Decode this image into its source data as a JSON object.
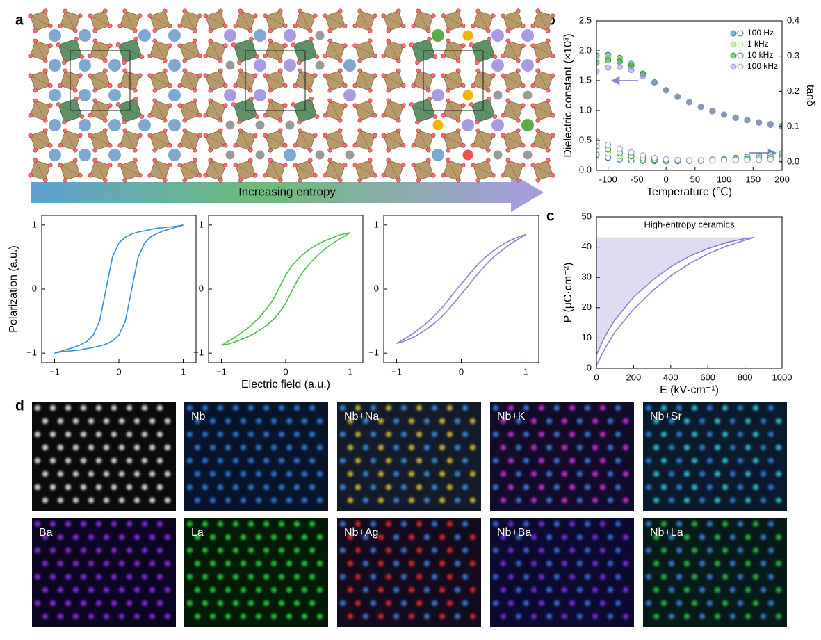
{
  "panel_labels": [
    "a",
    "b",
    "c",
    "d"
  ],
  "arrow_label": "Increasing entropy",
  "eds_maps": {
    "labels": [
      "Nb",
      "Nb+Na",
      "Nb+K",
      "Nb+Sr",
      "Ba",
      "La",
      "Nb+Ag",
      "Nb+Ba",
      "Nb+La"
    ]
  },
  "chart_data": [
    {
      "type": "line",
      "ylabel": "Polarization (a.u.)",
      "x": [
        -1,
        -0.9,
        -0.8,
        -0.7,
        -0.6,
        -0.5,
        -0.4,
        -0.3,
        -0.2,
        -0.1,
        0,
        0.1,
        0.2,
        0.3,
        0.4,
        0.5,
        0.6,
        0.7,
        0.8,
        0.9,
        1
      ],
      "series": [
        {
          "color": "#3a8fd0",
          "values": [
            -1,
            -0.97,
            -0.94,
            -0.91,
            -0.87,
            -0.82,
            -0.72,
            -0.5,
            0,
            0.5,
            0.72,
            0.81,
            0.86,
            0.89,
            0.91,
            0.93,
            0.95,
            0.96,
            0.97,
            0.98,
            1
          ]
        },
        {
          "color": "#3a8fd0",
          "values": [
            -1,
            -0.98,
            -0.97,
            -0.96,
            -0.95,
            -0.93,
            -0.91,
            -0.89,
            -0.86,
            -0.81,
            -0.72,
            -0.5,
            0,
            0.5,
            0.72,
            0.82,
            0.87,
            0.91,
            0.94,
            0.97,
            1
          ]
        }
      ],
      "xlim": [
        -1.2,
        1.2
      ],
      "xticks": [
        {
          "value": -1,
          "label": "−1"
        },
        0,
        1
      ],
      "ylim": [
        -1.15,
        1.15
      ],
      "yticks": [
        {
          "value": -1,
          "label": "−1"
        },
        0,
        1
      ]
    },
    {
      "type": "line",
      "xlabel": "Electric field (a.u.)",
      "x": [
        -1,
        -0.9,
        -0.8,
        -0.7,
        -0.6,
        -0.5,
        -0.4,
        -0.3,
        -0.2,
        -0.1,
        0,
        0.1,
        0.2,
        0.3,
        0.4,
        0.5,
        0.6,
        0.7,
        0.8,
        0.9,
        1
      ],
      "series": [
        {
          "color": "#4cbf4c",
          "values": [
            -0.88,
            -0.82,
            -0.76,
            -0.69,
            -0.62,
            -0.53,
            -0.43,
            -0.31,
            -0.17,
            0.02,
            0.22,
            0.37,
            0.48,
            0.57,
            0.64,
            0.7,
            0.75,
            0.79,
            0.83,
            0.86,
            0.88
          ]
        },
        {
          "color": "#4cbf4c",
          "values": [
            -0.88,
            -0.86,
            -0.83,
            -0.79,
            -0.75,
            -0.7,
            -0.64,
            -0.57,
            -0.48,
            -0.37,
            -0.22,
            -0.02,
            0.17,
            0.31,
            0.43,
            0.53,
            0.62,
            0.69,
            0.76,
            0.82,
            0.88
          ]
        }
      ],
      "xlim": [
        -1.2,
        1.2
      ],
      "xticks": [
        {
          "value": -1,
          "label": "−1"
        },
        0,
        1
      ],
      "ylim": [
        -1.15,
        1.15
      ],
      "yticks": [
        {
          "value": -1,
          "label": "−1"
        },
        0,
        1
      ]
    },
    {
      "type": "line",
      "x": [
        -1,
        -0.9,
        -0.8,
        -0.7,
        -0.6,
        -0.5,
        -0.4,
        -0.3,
        -0.2,
        -0.1,
        0,
        0.1,
        0.2,
        0.3,
        0.4,
        0.5,
        0.6,
        0.7,
        0.8,
        0.9,
        1
      ],
      "series": [
        {
          "color": "#8a7fd4",
          "values": [
            -0.85,
            -0.79,
            -0.73,
            -0.66,
            -0.58,
            -0.5,
            -0.4,
            -0.29,
            -0.17,
            -0.04,
            0.08,
            0.2,
            0.32,
            0.43,
            0.52,
            0.6,
            0.67,
            0.73,
            0.78,
            0.82,
            0.85
          ]
        },
        {
          "color": "#8a7fd4",
          "values": [
            -0.85,
            -0.82,
            -0.78,
            -0.73,
            -0.67,
            -0.6,
            -0.52,
            -0.43,
            -0.32,
            -0.2,
            -0.08,
            0.04,
            0.17,
            0.29,
            0.4,
            0.5,
            0.58,
            0.66,
            0.73,
            0.79,
            0.85
          ]
        }
      ],
      "xlim": [
        -1.2,
        1.2
      ],
      "xticks": [
        {
          "value": -1,
          "label": "−1"
        },
        0,
        1
      ],
      "ylim": [
        -1.15,
        1.15
      ],
      "yticks": [
        {
          "value": -1,
          "label": "−1"
        },
        0,
        1
      ]
    },
    {
      "type": "scatter",
      "xlabel": "Temperature (℃)",
      "ylabel": "Dielectric constant (×10³)",
      "y2label": "tanδ",
      "x": [
        -120,
        -100,
        -80,
        -60,
        -40,
        -20,
        0,
        20,
        40,
        60,
        80,
        100,
        120,
        140,
        160,
        180,
        200
      ],
      "series": [
        {
          "name": "100 Hz",
          "color": "#2f74c0",
          "values": [
            1.92,
            1.93,
            1.88,
            1.78,
            1.62,
            1.47,
            1.34,
            1.23,
            1.14,
            1.06,
            0.99,
            0.93,
            0.88,
            0.84,
            0.8,
            0.77,
            0.74
          ]
        },
        {
          "name": "1 kHz",
          "color": "#a8d86e",
          "values": [
            1.88,
            1.9,
            1.86,
            1.77,
            1.62,
            1.47,
            1.34,
            1.23,
            1.14,
            1.06,
            0.99,
            0.93,
            0.88,
            0.84,
            0.8,
            0.77,
            0.74
          ]
        },
        {
          "name": "10 kHz",
          "color": "#2e9a3c",
          "values": [
            1.8,
            1.84,
            1.82,
            1.75,
            1.61,
            1.47,
            1.34,
            1.23,
            1.14,
            1.06,
            0.99,
            0.93,
            0.88,
            0.84,
            0.8,
            0.77,
            0.74
          ]
        },
        {
          "name": "100 kHz",
          "color": "#9d92dc",
          "values": [
            1.65,
            1.72,
            1.73,
            1.68,
            1.58,
            1.46,
            1.34,
            1.23,
            1.14,
            1.06,
            0.99,
            0.93,
            0.88,
            0.84,
            0.8,
            0.76,
            0.73
          ]
        },
        {
          "color": "#2f74c0",
          "axis": "y2",
          "values": [
            0.02,
            0.012,
            0.007,
            0.004,
            0.003,
            0.002,
            0.002,
            0.002,
            0.003,
            0.004,
            0.006,
            0.008,
            0.011,
            0.014,
            0.017,
            0.02,
            0.024
          ]
        },
        {
          "color": "#a8d86e",
          "axis": "y2",
          "values": [
            0.035,
            0.025,
            0.016,
            0.01,
            0.006,
            0.004,
            0.003,
            0.003,
            0.003,
            0.004,
            0.005,
            0.006,
            0.008,
            0.01,
            0.013,
            0.016,
            0.019
          ]
        },
        {
          "color": "#2e9a3c",
          "axis": "y2",
          "values": [
            0.045,
            0.035,
            0.025,
            0.016,
            0.01,
            0.006,
            0.004,
            0.003,
            0.003,
            0.003,
            0.004,
            0.005,
            0.006,
            0.008,
            0.01,
            0.012,
            0.014
          ]
        },
        {
          "color": "#9d92dc",
          "axis": "y2",
          "values": [
            0.058,
            0.048,
            0.037,
            0.027,
            0.018,
            0.011,
            0.007,
            0.005,
            0.004,
            0.004,
            0.004,
            0.004,
            0.005,
            0.005,
            0.006,
            0.007,
            0.008
          ]
        }
      ],
      "xlim": [
        -120,
        200
      ],
      "xticks": [
        -100,
        -50,
        0,
        50,
        100,
        150,
        200
      ],
      "ylim": [
        0,
        2.5
      ],
      "yticks": [
        {
          "value": 0,
          "label": "0.0"
        },
        0.5,
        {
          "value": 1,
          "label": "1.0"
        },
        1.5,
        {
          "value": 2,
          "label": "2.0"
        },
        2.5
      ],
      "y2lim": [
        -0.024,
        0.4
      ],
      "y2ticks": [
        {
          "value": 0,
          "label": "0.0"
        },
        0.1,
        0.2,
        0.3,
        0.4
      ],
      "legend": "upper right"
    },
    {
      "type": "line",
      "title": "High-entropy ceramics",
      "xlabel": "E (kV·cm⁻¹)",
      "ylabel": "P (μC·cm⁻²)",
      "shade": true,
      "x": [
        0,
        50,
        100,
        200,
        300,
        400,
        500,
        600,
        700,
        800,
        850
      ],
      "series": [
        {
          "color": "#8a7fd4",
          "values": [
            4.5,
            11,
            16,
            23.5,
            29,
            33.5,
            37,
            39.5,
            41.5,
            42.8,
            43.2
          ]
        },
        {
          "color": "#8a7fd4",
          "values": [
            1,
            7,
            12,
            19.5,
            25.5,
            30.5,
            34.5,
            37.8,
            40.3,
            42.3,
            43.2
          ]
        }
      ],
      "xlim": [
        0,
        1000
      ],
      "xticks": [
        0,
        200,
        400,
        600,
        800,
        1000
      ],
      "ylim": [
        0,
        50
      ],
      "yticks": [
        0,
        10,
        20,
        30,
        40,
        50
      ]
    }
  ]
}
